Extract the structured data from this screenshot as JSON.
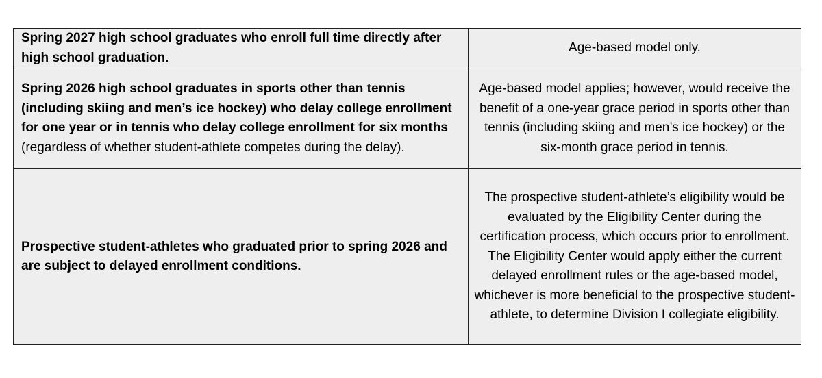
{
  "rows": [
    {
      "left_bold": "Spring 2027 high school graduates who enroll full time directly after high school graduation.",
      "left_regular": "",
      "right": "Age-based model only."
    },
    {
      "left_bold": "Spring 2026 high school graduates in sports other than tennis (including skiing and men’s ice hockey) who delay college enrollment for one year or in tennis who delay college enrollment for six months",
      "left_regular": " (regardless of whether student-athlete competes during the delay).",
      "right": "Age-based model applies; however, would receive the benefit of a one-year grace period in sports other than tennis (including skiing and men’s ice hockey) or the six-month grace period in tennis."
    },
    {
      "left_bold": "Prospective student-athletes who graduated prior to spring 2026 and are subject to delayed enrollment conditions.",
      "left_regular": "",
      "right": "The prospective student-athlete’s eligibility would be evaluated by the Eligibility Center during the certification process, which occurs prior to enrollment.  The Eligibility Center would apply either the current delayed enrollment rules or the age-based model, whichever is more beneficial to the prospective student-athlete, to determine Division I collegiate eligibility."
    }
  ]
}
